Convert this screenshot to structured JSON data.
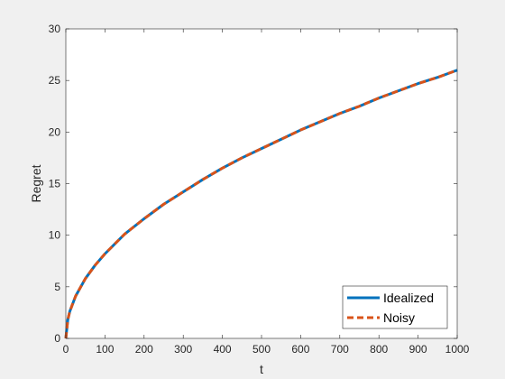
{
  "chart_data": {
    "type": "line",
    "title": "",
    "xlabel": "t",
    "ylabel": "Regret",
    "xlim": [
      0,
      1000
    ],
    "ylim": [
      0,
      30
    ],
    "xticks": [
      0,
      100,
      200,
      300,
      400,
      500,
      600,
      700,
      800,
      900,
      1000
    ],
    "yticks": [
      0,
      5,
      10,
      15,
      20,
      25,
      30
    ],
    "grid": false,
    "legend_position": "bottom-right",
    "series": [
      {
        "name": "Idealized",
        "color": "#0072BD",
        "line_style": "solid",
        "x": [
          0,
          5,
          10,
          25,
          50,
          75,
          100,
          150,
          200,
          250,
          300,
          350,
          400,
          450,
          500,
          550,
          600,
          650,
          700,
          750,
          800,
          850,
          900,
          950,
          1000
        ],
        "y": [
          0,
          1.8,
          2.6,
          4.1,
          5.8,
          7.1,
          8.2,
          10.1,
          11.6,
          13.0,
          14.2,
          15.4,
          16.5,
          17.5,
          18.4,
          19.3,
          20.2,
          21.0,
          21.8,
          22.5,
          23.3,
          24.0,
          24.7,
          25.3,
          26.0
        ]
      },
      {
        "name": "Noisy",
        "color": "#D95319",
        "line_style": "dashed",
        "x": [
          0,
          5,
          10,
          25,
          50,
          75,
          100,
          150,
          200,
          250,
          300,
          350,
          400,
          450,
          500,
          550,
          600,
          650,
          700,
          750,
          800,
          850,
          900,
          950,
          1000
        ],
        "y": [
          0,
          1.8,
          2.6,
          4.1,
          5.8,
          7.1,
          8.2,
          10.1,
          11.6,
          13.0,
          14.2,
          15.4,
          16.5,
          17.5,
          18.4,
          19.3,
          20.2,
          21.0,
          21.8,
          22.5,
          23.3,
          24.0,
          24.7,
          25.3,
          26.0
        ]
      }
    ]
  }
}
